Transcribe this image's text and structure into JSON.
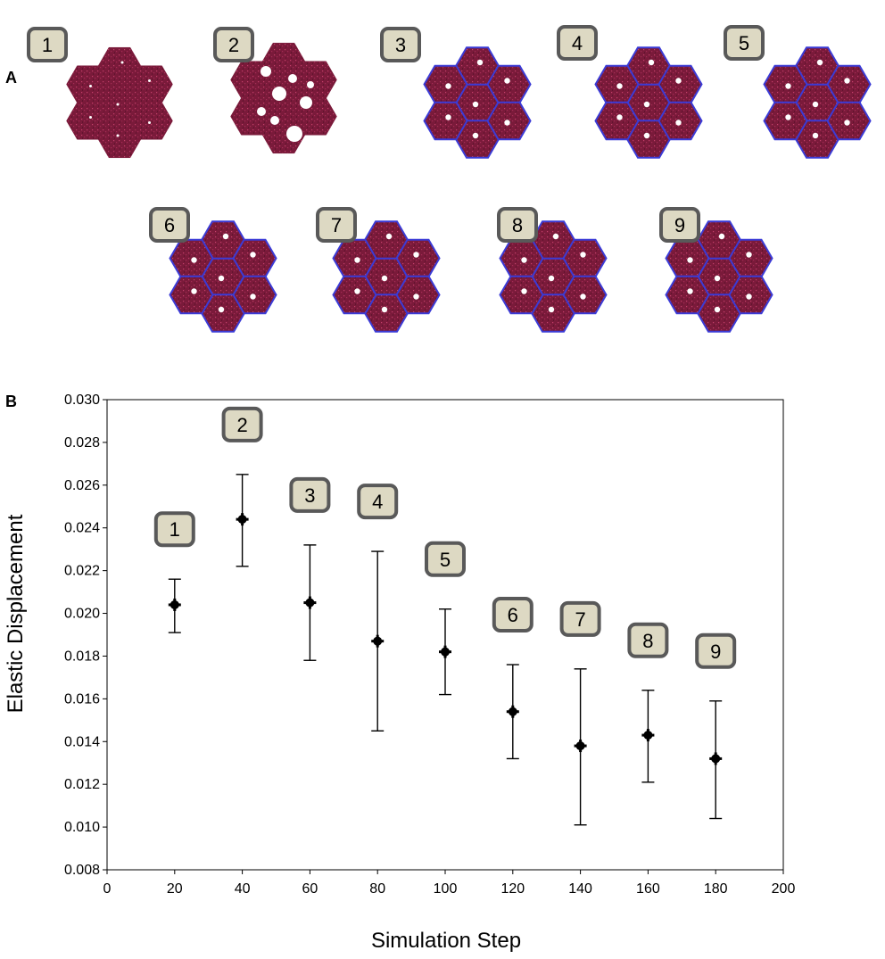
{
  "panel_a": {
    "letter": "A",
    "snapshots": [
      {
        "label": "1"
      },
      {
        "label": "2"
      },
      {
        "label": "3"
      },
      {
        "label": "4"
      },
      {
        "label": "5"
      },
      {
        "label": "6"
      },
      {
        "label": "7"
      },
      {
        "label": "8"
      },
      {
        "label": "9"
      }
    ],
    "colors": {
      "hexagon": "#7a1a3a",
      "speckle": "#c2406a",
      "boundary": "#3b3bd6",
      "void": "#ffffff"
    }
  },
  "panel_b": {
    "letter": "B"
  },
  "chart_data": {
    "type": "scatter",
    "xlabel": "Simulation Step",
    "ylabel": "Elastic Displacement",
    "xlim": [
      0,
      200
    ],
    "ylim": [
      0.008,
      0.03
    ],
    "x_ticks": [
      "0",
      "20",
      "40",
      "60",
      "80",
      "100",
      "120",
      "140",
      "160",
      "180",
      "200"
    ],
    "y_ticks": [
      "0.008",
      "0.010",
      "0.012",
      "0.014",
      "0.016",
      "0.018",
      "0.020",
      "0.022",
      "0.024",
      "0.026",
      "0.028",
      "0.030"
    ],
    "grid": false,
    "error_bars": true,
    "points": [
      {
        "label": "1",
        "x": 20,
        "y": 0.0204,
        "low": 0.0191,
        "high": 0.0216
      },
      {
        "label": "2",
        "x": 40,
        "y": 0.0244,
        "low": 0.0222,
        "high": 0.0265
      },
      {
        "label": "3",
        "x": 60,
        "y": 0.0205,
        "low": 0.0178,
        "high": 0.0232
      },
      {
        "label": "4",
        "x": 80,
        "y": 0.0187,
        "low": 0.0145,
        "high": 0.0229
      },
      {
        "label": "5",
        "x": 100,
        "y": 0.0182,
        "low": 0.0162,
        "high": 0.0202
      },
      {
        "label": "6",
        "x": 120,
        "y": 0.0154,
        "low": 0.0132,
        "high": 0.0176
      },
      {
        "label": "7",
        "x": 140,
        "y": 0.0138,
        "low": 0.0101,
        "high": 0.0174
      },
      {
        "label": "8",
        "x": 160,
        "y": 0.0143,
        "low": 0.0121,
        "high": 0.0164
      },
      {
        "label": "9",
        "x": 180,
        "y": 0.0132,
        "low": 0.0104,
        "high": 0.0159
      }
    ],
    "marker_color": "#000000"
  }
}
